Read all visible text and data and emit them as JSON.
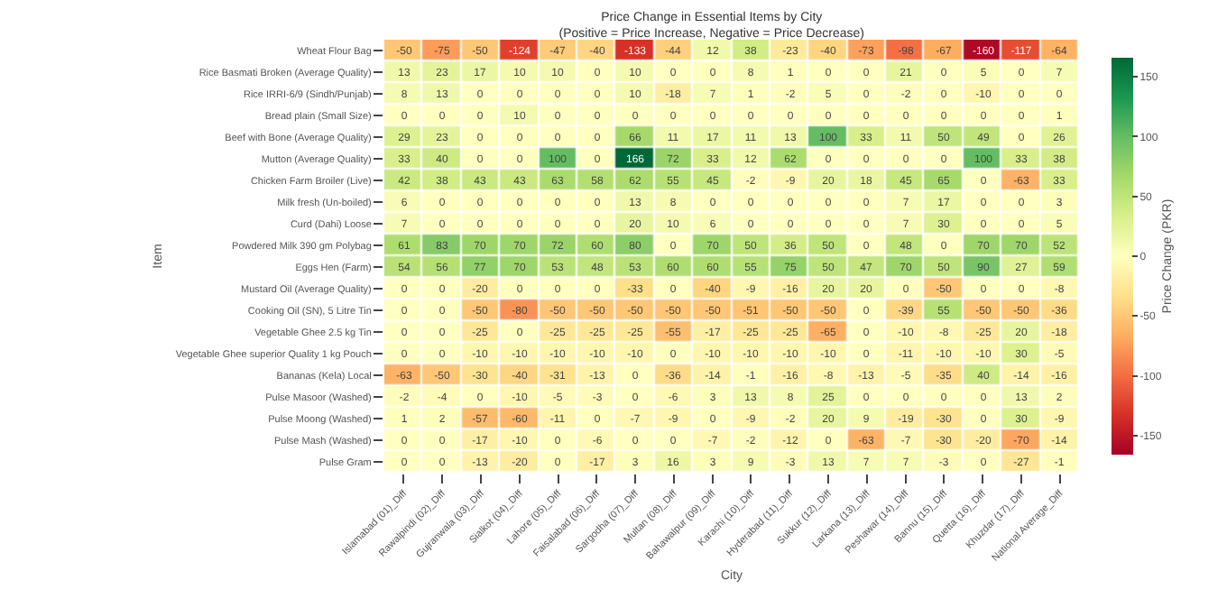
{
  "chart_data": {
    "type": "heatmap",
    "title": "Price Change in Essential Items by City",
    "subtitle": "(Positive = Price Increase, Negative = Price Decrease)",
    "xlabel": "City",
    "ylabel": "Item",
    "clabel": "Price Change (PKR)",
    "categories": [
      "Islamabad (01)_Diff",
      "Rawalpindi (02)_Diff",
      "Gujranwala (03)_Diff",
      "Sialkot (04)_Diff",
      "Lahore (05)_Diff",
      "Faisalabad (06)_Diff",
      "Sargodha (07)_Diff",
      "Multan (08)_Diff",
      "Bahawalpur (09)_Diff",
      "Karachi (10)_Diff",
      "Hyderabad (11)_Diff",
      "Sukkur (12)_Diff",
      "Larkana (13)_Diff",
      "Peshawar (14)_Diff",
      "Bannu (15)_Diff",
      "Quetta (16)_Diff",
      "Khuzdar (17)_Diff",
      "National Average_Diff"
    ],
    "y_categories": [
      "Wheat Flour Bag",
      "Rice Basmati Broken (Average Quality)",
      "Rice IRRI-6/9 (Sindh/Punjab)",
      "Bread plain (Small Size)",
      "Beef with Bone (Average Quality)",
      "Mutton (Average Quality)",
      "Chicken Farm Broiler (Live)",
      "Milk fresh (Un-boiled)",
      "Curd (Dahi) Loose",
      "Powdered Milk 390 gm Polybag",
      "Eggs Hen (Farm)",
      "Mustard Oil (Average Quality)",
      "Cooking Oil (SN), 5 Litre Tin",
      "Vegetable Ghee 2.5 kg Tin",
      "Vegetable Ghee superior Quality 1 kg Pouch",
      "Bananas (Kela) Local",
      "Pulse Masoor (Washed)",
      "Pulse Moong (Washed)",
      "Pulse Mash (Washed)",
      "Pulse Gram"
    ],
    "cells": [
      [
        -50,
        -75,
        -50,
        -124,
        -47,
        -40,
        -133,
        -44,
        12,
        38,
        -23,
        -40,
        -73,
        -98,
        -67,
        -160,
        -117,
        -64
      ],
      [
        13,
        23,
        17,
        10,
        10,
        0,
        10,
        0,
        0,
        8,
        1,
        0,
        0,
        21,
        0,
        5,
        0,
        7
      ],
      [
        8,
        13,
        0,
        0,
        0,
        0,
        10,
        -18,
        7,
        1,
        -2,
        5,
        0,
        -2,
        0,
        -10,
        0,
        0
      ],
      [
        0,
        0,
        0,
        10,
        0,
        0,
        0,
        0,
        0,
        0,
        0,
        0,
        0,
        0,
        0,
        0,
        0,
        1
      ],
      [
        29,
        23,
        0,
        0,
        0,
        0,
        66,
        11,
        17,
        11,
        13,
        100,
        33,
        11,
        50,
        49,
        0,
        26
      ],
      [
        33,
        40,
        0,
        0,
        100,
        0,
        166,
        72,
        33,
        12,
        62,
        0,
        0,
        0,
        0,
        100,
        33,
        38
      ],
      [
        42,
        38,
        43,
        43,
        63,
        58,
        62,
        55,
        45,
        -2,
        -9,
        20,
        18,
        45,
        65,
        0,
        -63,
        33
      ],
      [
        6,
        0,
        0,
        0,
        0,
        0,
        13,
        8,
        0,
        0,
        0,
        0,
        0,
        7,
        17,
        0,
        0,
        3
      ],
      [
        7,
        0,
        0,
        0,
        0,
        0,
        20,
        10,
        6,
        0,
        0,
        0,
        0,
        7,
        30,
        0,
        0,
        5
      ],
      [
        61,
        83,
        70,
        70,
        72,
        60,
        80,
        0,
        70,
        50,
        36,
        50,
        0,
        48,
        0,
        70,
        70,
        52
      ],
      [
        54,
        56,
        77,
        70,
        53,
        48,
        53,
        60,
        60,
        55,
        75,
        50,
        47,
        70,
        50,
        90,
        27,
        59
      ],
      [
        0,
        0,
        -20,
        0,
        0,
        0,
        -33,
        0,
        -40,
        -9,
        -16,
        20,
        20,
        0,
        -50,
        0,
        0,
        -8
      ],
      [
        0,
        0,
        -50,
        -80,
        -50,
        -50,
        -50,
        -50,
        -50,
        -51,
        -50,
        -50,
        0,
        -39,
        55,
        -50,
        -50,
        -36
      ],
      [
        0,
        0,
        -25,
        0,
        -25,
        -25,
        -25,
        -55,
        -17,
        -25,
        -25,
        -65,
        0,
        -10,
        -8,
        -25,
        20,
        -18
      ],
      [
        0,
        0,
        -10,
        -10,
        -10,
        -10,
        -10,
        0,
        -10,
        -10,
        -10,
        -10,
        0,
        -11,
        -10,
        -10,
        30,
        -5
      ],
      [
        -63,
        -50,
        -30,
        -40,
        -31,
        -13,
        0,
        -36,
        -14,
        -1,
        -16,
        -8,
        -13,
        -5,
        -35,
        40,
        -14,
        -16
      ],
      [
        -2,
        -4,
        0,
        -10,
        -5,
        -3,
        0,
        -6,
        3,
        13,
        8,
        25,
        0,
        0,
        0,
        0,
        13,
        2
      ],
      [
        1,
        2,
        -57,
        -60,
        -11,
        0,
        -7,
        -9,
        0,
        -9,
        -2,
        20,
        9,
        -19,
        -30,
        0,
        30,
        -9
      ],
      [
        0,
        0,
        -17,
        -10,
        0,
        -6,
        0,
        0,
        -7,
        -2,
        -12,
        0,
        -63,
        -7,
        -30,
        -20,
        -70,
        -14
      ],
      [
        0,
        0,
        -13,
        -20,
        0,
        -17,
        3,
        16,
        3,
        9,
        -3,
        13,
        7,
        7,
        -3,
        0,
        -27,
        -1
      ]
    ],
    "data_labels": true,
    "clim": [
      -166,
      166
    ],
    "cticks": [
      -150,
      -100,
      -50,
      0,
      50,
      100,
      150
    ]
  }
}
